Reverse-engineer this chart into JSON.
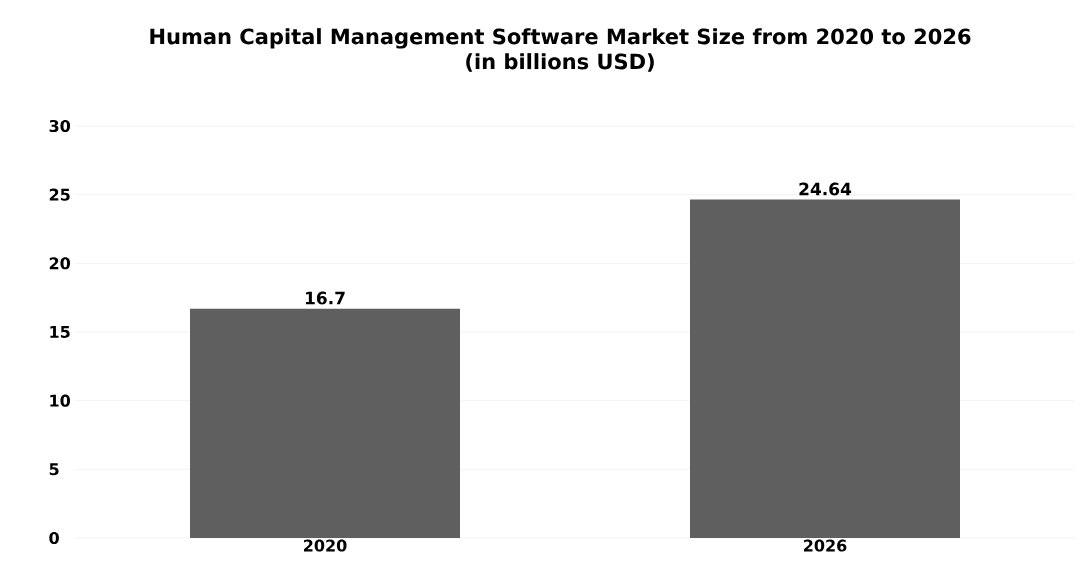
{
  "chart_data": {
    "type": "bar",
    "title": "Human Capital Management Software Market Size from 2020 to 2026",
    "subtitle": "(in billions USD)",
    "categories": [
      "2020",
      "2026"
    ],
    "values": [
      16.7,
      24.64
    ],
    "value_labels": [
      "16.7",
      "24.64"
    ],
    "color": "#5f5f5f",
    "ylim": [
      0,
      30
    ],
    "yticks": [
      0,
      5,
      10,
      15,
      20,
      25,
      30
    ],
    "grid": "y"
  }
}
